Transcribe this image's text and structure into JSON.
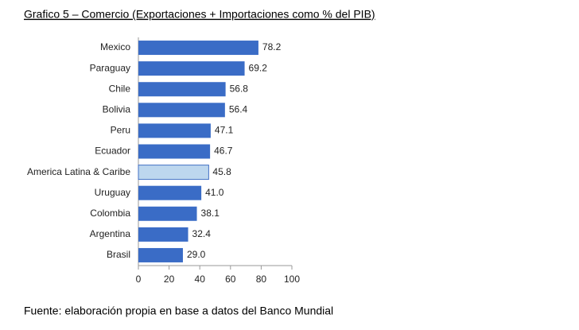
{
  "chart_data": {
    "type": "barh",
    "title": "Grafico 5 – Comercio (Exportaciones + Importaciones como % del PIB)",
    "source": "Fuente: elaboración propia en base a datos del Banco Mundial",
    "categories": [
      "Mexico",
      "Paraguay",
      "Chile",
      "Bolivia",
      "Peru",
      "Ecuador",
      "America Latina & Caribe",
      "Uruguay",
      "Colombia",
      "Argentina",
      "Brasil"
    ],
    "values": [
      78.2,
      69.2,
      56.8,
      56.4,
      47.1,
      46.7,
      45.8,
      41.0,
      38.1,
      32.4,
      29.0
    ],
    "value_labels": [
      "78.2",
      "69.2",
      "56.8",
      "56.4",
      "47.1",
      "46.7",
      "45.8",
      "41.0",
      "38.1",
      "32.4",
      "29.0"
    ],
    "colors": [
      "#3a6cc6",
      "#3a6cc6",
      "#3a6cc6",
      "#3a6cc6",
      "#3a6cc6",
      "#3a6cc6",
      "#bdd7ee",
      "#3a6cc6",
      "#3a6cc6",
      "#3a6cc6",
      "#3a6cc6"
    ],
    "xlim": [
      0,
      100
    ],
    "xticks": [
      0,
      20,
      40,
      60,
      80,
      100
    ]
  }
}
